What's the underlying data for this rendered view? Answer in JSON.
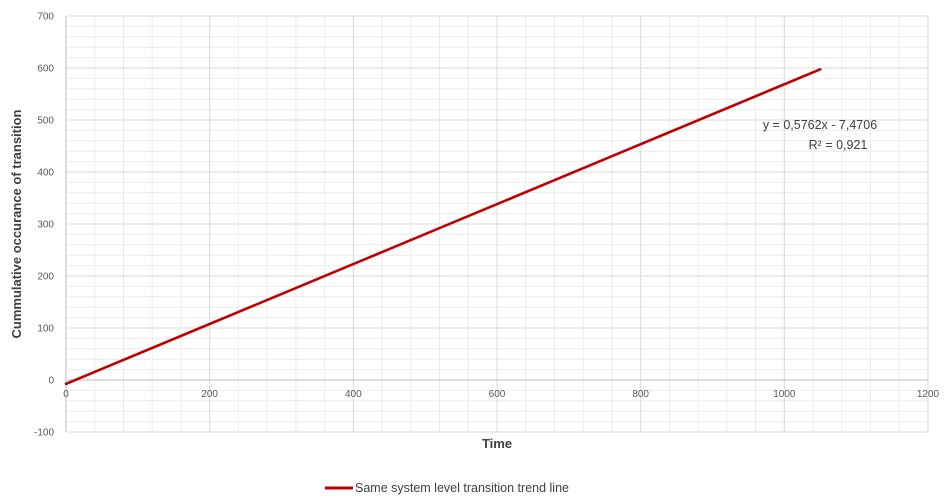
{
  "chart_data": {
    "type": "line",
    "title": "",
    "xlabel": "Time",
    "ylabel": "Cummulative occurance of transition",
    "xlim": [
      0,
      1200
    ],
    "ylim": [
      -100,
      700
    ],
    "x_ticks": [
      "0",
      "200",
      "400",
      "600",
      "800",
      "1000",
      "1200"
    ],
    "y_ticks": [
      "700",
      "600",
      "500",
      "400",
      "300",
      "200",
      "100",
      "0",
      "-100"
    ],
    "grid": true,
    "legend_position": "bottom",
    "series": [
      {
        "name": "Same system level transition trend line",
        "color": "#C00000",
        "x": [
          0,
          1050
        ],
        "y": [
          -7.47,
          597.5
        ]
      }
    ],
    "annotations": {
      "equation": "y = 0,5762x - 7,4706",
      "r2_prefix": "R² = ",
      "r2_value": "0,921"
    }
  }
}
